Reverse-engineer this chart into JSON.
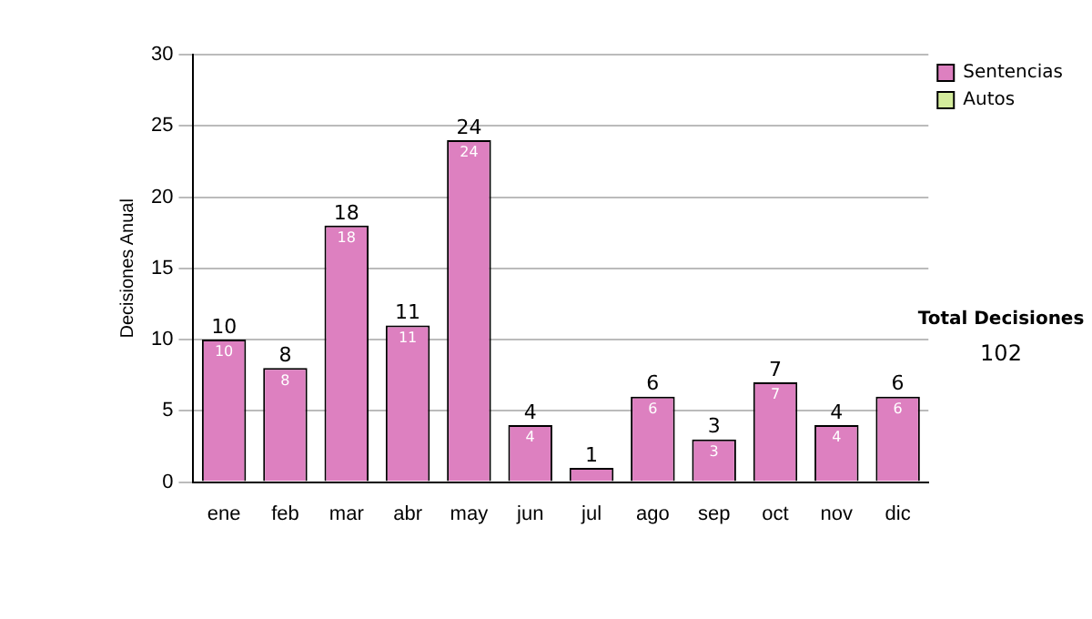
{
  "chart_data": {
    "type": "bar",
    "stacked": true,
    "ylabel": "Decisiones Anual",
    "categories": [
      "ene",
      "feb",
      "mar",
      "abr",
      "may",
      "jun",
      "jul",
      "ago",
      "sep",
      "oct",
      "nov",
      "dic"
    ],
    "series": [
      {
        "name": "Sentencias",
        "color": "#dd80c0",
        "values": [
          10,
          8,
          18,
          11,
          24,
          4,
          1,
          6,
          3,
          7,
          4,
          6
        ],
        "value_labels": [
          "10",
          "8",
          "18",
          "11",
          "24",
          "4",
          null,
          "6",
          "3",
          "7",
          "4",
          "6"
        ]
      },
      {
        "name": "Autos",
        "color": "#d4ec9c",
        "values": [
          0,
          0,
          0,
          0,
          0,
          0,
          0,
          0,
          0,
          0,
          0,
          0
        ]
      }
    ],
    "totals": [
      "10",
      "8",
      "18",
      "11",
      "24",
      "4",
      "1",
      "6",
      "3",
      "7",
      "4",
      "6"
    ],
    "ylim": [
      0,
      30
    ],
    "yticks": [
      0,
      5,
      10,
      15,
      20,
      25,
      30
    ],
    "grid": "y",
    "legend": "right",
    "annotations": [
      "Total Decisiones",
      "102"
    ]
  }
}
